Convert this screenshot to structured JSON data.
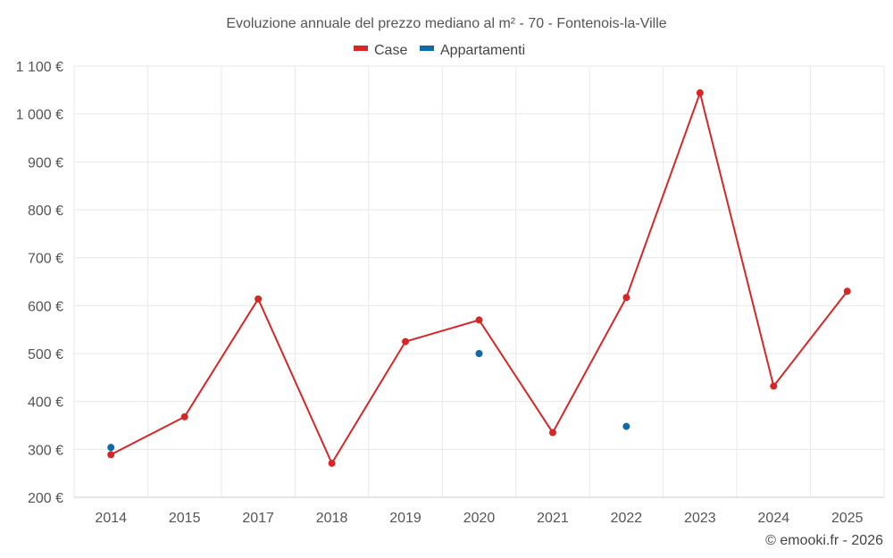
{
  "chart_data": {
    "type": "line",
    "title": "Evoluzione annuale del prezzo mediano al m² - 70 - Fontenois-la-Ville",
    "categories": [
      "2014",
      "2015",
      "2017",
      "2018",
      "2019",
      "2020",
      "2021",
      "2022",
      "2023",
      "2024",
      "2025"
    ],
    "ylim": [
      200,
      1100
    ],
    "yticks": [
      200,
      300,
      400,
      500,
      600,
      700,
      800,
      900,
      1000,
      1100
    ],
    "ytick_labels": [
      "200 €",
      "300 €",
      "400 €",
      "500 €",
      "600 €",
      "700 €",
      "800 €",
      "900 €",
      "1 000 €",
      "1 100 €"
    ],
    "xlabel": "",
    "ylabel": "",
    "grid": true,
    "legend_position": "top-center",
    "series": [
      {
        "name": "Case",
        "color": "#d62728",
        "line": true,
        "values": [
          289,
          368,
          614,
          271,
          525,
          570,
          335,
          617,
          1044,
          432,
          630
        ]
      },
      {
        "name": "Appartamenti",
        "color": "#0e6ba8",
        "line": false,
        "values": [
          304,
          null,
          null,
          null,
          null,
          500,
          null,
          348,
          null,
          null,
          null
        ]
      }
    ]
  },
  "footer": {
    "credit": "© emooki.fr - 2026"
  }
}
